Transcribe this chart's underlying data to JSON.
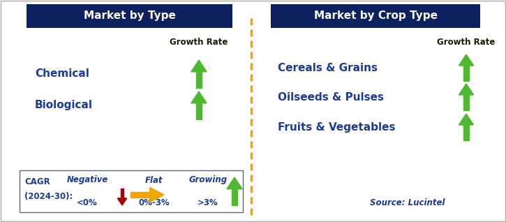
{
  "title_left": "Market by Type",
  "title_right": "Market by Crop Type",
  "header_bg": "#0d2060",
  "header_text_color": "#ffffff",
  "left_items": [
    "Chemical",
    "Biological"
  ],
  "right_items": [
    "Cereals & Grains",
    "Oilseeds & Pulses",
    "Fruits & Vegetables"
  ],
  "item_text_color": "#1a3a9c",
  "growth_rate_label": "Growth Rate",
  "growth_rate_color": "#1a1a00",
  "arrow_up_color": "#4db830",
  "divider_color": "#f0a500",
  "source_text": "Source: Lucintel",
  "source_color": "#1a3a9c",
  "legend_cagr_line1": "CAGR",
  "legend_cagr_line2": "(2024-30):",
  "legend_negative_label": "Negative",
  "legend_negative_value": "<0%",
  "legend_flat_label": "Flat",
  "legend_flat_value": "0%-3%",
  "legend_growing_label": "Growing",
  "legend_growing_value": ">3%",
  "legend_text_color": "#1a3a9c",
  "legend_cagr_color": "#1a3a9c",
  "legend_arrow_down_color": "#aa0000",
  "legend_arrow_right_color": "#f0a500",
  "legend_arrow_up_color": "#4db830",
  "bg_color": "#ffffff",
  "border_color": "#aaaaaa",
  "fig_w": 7.25,
  "fig_h": 3.18,
  "dpi": 100
}
